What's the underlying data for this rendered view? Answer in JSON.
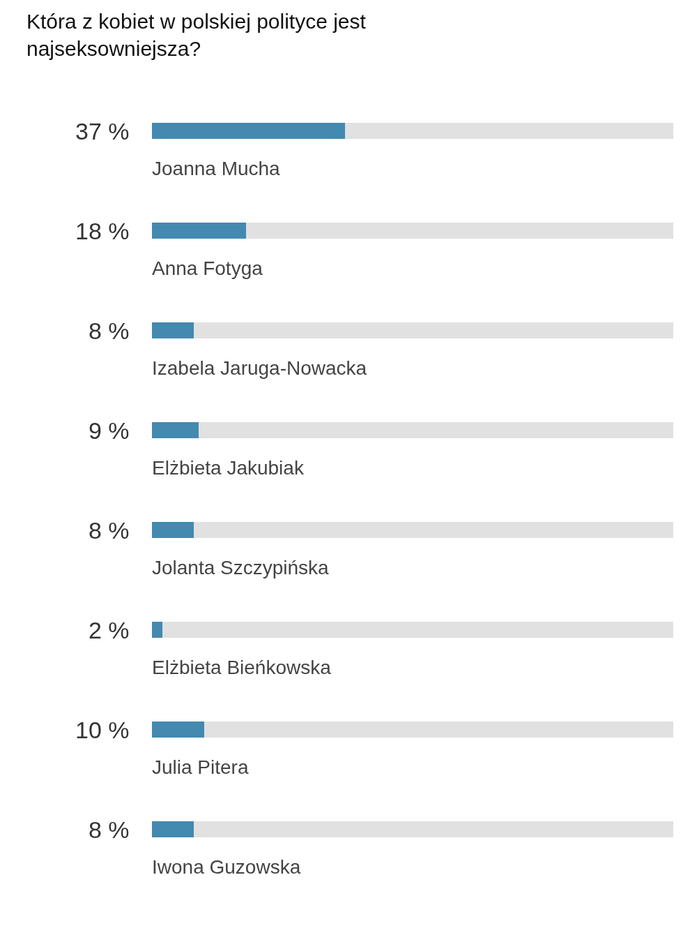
{
  "chart_data": {
    "type": "bar",
    "title": "Która z kobiet w polskiej polityce jest najseksowniejsza?",
    "orientation": "horizontal",
    "stacked": true,
    "tick_labels": false,
    "xlim": [
      0,
      100
    ],
    "categories": [
      "Joanna Mucha",
      "Anna Fotyga",
      "Izabela Jaruga-Nowacka",
      "Elżbieta Jakubiak",
      "Jolanta Szczypińska",
      "Elżbieta Bieńkowska",
      "Julia Pitera",
      "Iwona Guzowska"
    ],
    "series": [
      {
        "color": "#4489b0",
        "values": [
          37,
          18,
          8,
          9,
          8,
          2,
          10,
          8
        ],
        "value_labels": [
          "37 %",
          "18 %",
          "8 %",
          "9 %",
          "8 %",
          "2 %",
          "10 %",
          "8 %"
        ]
      },
      {
        "color": "#e1e1e1",
        "values": [
          63,
          82,
          92,
          91,
          92,
          98,
          90,
          92
        ]
      }
    ]
  }
}
